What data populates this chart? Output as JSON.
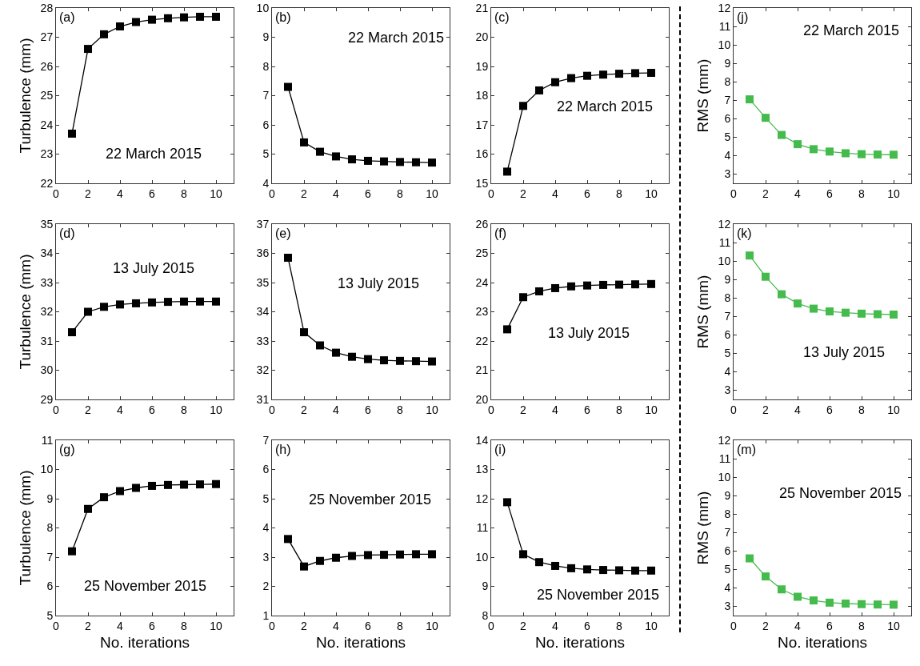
{
  "chart_data": [
    {
      "type": "line",
      "title": "(a)",
      "ylabel": "Turbulence (mm)",
      "annotations": [
        "22 March 2015"
      ],
      "x": [
        1,
        2,
        3,
        4,
        5,
        6,
        7,
        8,
        9,
        10
      ],
      "xlim": [
        0,
        11.1
      ],
      "xticks": [
        0,
        2,
        4,
        6,
        8,
        10
      ],
      "ylim": [
        22,
        28
      ],
      "yticks": [
        22,
        23,
        24,
        25,
        26,
        27,
        28
      ],
      "marker": "square",
      "grid": false,
      "series": [
        {
          "color": "#000000",
          "values": [
            23.7,
            26.6,
            27.1,
            27.37,
            27.52,
            27.6,
            27.65,
            27.68,
            27.7,
            27.7
          ]
        }
      ]
    },
    {
      "type": "line",
      "title": "(b)",
      "annotations": [
        "22 March 2015"
      ],
      "x": [
        1,
        2,
        3,
        4,
        5,
        6,
        7,
        8,
        9,
        10
      ],
      "xlim": [
        0,
        11.1
      ],
      "xticks": [
        0,
        2,
        4,
        6,
        8,
        10
      ],
      "ylim": [
        4,
        10
      ],
      "yticks": [
        4,
        5,
        6,
        7,
        8,
        9,
        10
      ],
      "marker": "square",
      "grid": false,
      "series": [
        {
          "color": "#000000",
          "values": [
            7.3,
            5.4,
            5.08,
            4.92,
            4.82,
            4.77,
            4.75,
            4.73,
            4.72,
            4.71
          ]
        }
      ]
    },
    {
      "type": "line",
      "title": "(c)",
      "annotations": [
        "22 March 2015"
      ],
      "x": [
        1,
        2,
        3,
        4,
        5,
        6,
        7,
        8,
        9,
        10
      ],
      "xlim": [
        0,
        11.1
      ],
      "xticks": [
        0,
        2,
        4,
        6,
        8,
        10
      ],
      "ylim": [
        15,
        21
      ],
      "yticks": [
        15,
        16,
        17,
        18,
        19,
        20,
        21
      ],
      "marker": "square",
      "grid": false,
      "series": [
        {
          "color": "#000000",
          "values": [
            15.4,
            17.65,
            18.18,
            18.46,
            18.6,
            18.68,
            18.72,
            18.75,
            18.77,
            18.78
          ]
        }
      ]
    },
    {
      "type": "line",
      "title": "(j)",
      "ylabel": "RMS (mm)",
      "annotations": [
        "22 March 2015"
      ],
      "x": [
        1,
        2,
        3,
        4,
        5,
        6,
        7,
        8,
        9,
        10
      ],
      "xlim": [
        0,
        11.1
      ],
      "xticks": [
        0,
        2,
        4,
        6,
        8,
        10
      ],
      "ylim": [
        2.5,
        12
      ],
      "yticks": [
        3,
        4,
        5,
        6,
        7,
        8,
        9,
        10,
        11,
        12
      ],
      "marker": "square",
      "grid": false,
      "series": [
        {
          "color": "#44bb4c",
          "values": [
            7.05,
            6.05,
            5.12,
            4.62,
            4.35,
            4.22,
            4.13,
            4.08,
            4.06,
            4.05
          ]
        }
      ]
    },
    {
      "type": "line",
      "title": "(d)",
      "ylabel": "Turbulence (mm)",
      "annotations": [
        "13 July 2015"
      ],
      "x": [
        1,
        2,
        3,
        4,
        5,
        6,
        7,
        8,
        9,
        10
      ],
      "xlim": [
        0,
        11.1
      ],
      "xticks": [
        0,
        2,
        4,
        6,
        8,
        10
      ],
      "ylim": [
        29,
        35
      ],
      "yticks": [
        29,
        30,
        31,
        32,
        33,
        34,
        35
      ],
      "marker": "square",
      "grid": false,
      "series": [
        {
          "color": "#000000",
          "values": [
            31.3,
            32.0,
            32.17,
            32.25,
            32.29,
            32.32,
            32.34,
            32.35,
            32.35,
            32.35
          ]
        }
      ]
    },
    {
      "type": "line",
      "title": "(e)",
      "annotations": [
        "13 July 2015"
      ],
      "x": [
        1,
        2,
        3,
        4,
        5,
        6,
        7,
        8,
        9,
        10
      ],
      "xlim": [
        0,
        11.1
      ],
      "xticks": [
        0,
        2,
        4,
        6,
        8,
        10
      ],
      "ylim": [
        31,
        37
      ],
      "yticks": [
        31,
        32,
        33,
        34,
        35,
        36,
        37
      ],
      "marker": "square",
      "grid": false,
      "series": [
        {
          "color": "#000000",
          "values": [
            35.85,
            33.3,
            32.85,
            32.6,
            32.46,
            32.38,
            32.34,
            32.32,
            32.31,
            32.3
          ]
        }
      ]
    },
    {
      "type": "line",
      "title": "(f)",
      "annotations": [
        "13 July 2015"
      ],
      "x": [
        1,
        2,
        3,
        4,
        5,
        6,
        7,
        8,
        9,
        10
      ],
      "xlim": [
        0,
        11.1
      ],
      "xticks": [
        0,
        2,
        4,
        6,
        8,
        10
      ],
      "ylim": [
        20,
        26
      ],
      "yticks": [
        20,
        21,
        22,
        23,
        24,
        25,
        26
      ],
      "marker": "square",
      "grid": false,
      "series": [
        {
          "color": "#000000",
          "values": [
            22.4,
            23.5,
            23.7,
            23.81,
            23.87,
            23.9,
            23.92,
            23.93,
            23.94,
            23.95
          ]
        }
      ]
    },
    {
      "type": "line",
      "title": "(k)",
      "ylabel": "RMS (mm)",
      "annotations": [
        "13 July 2015"
      ],
      "x": [
        1,
        2,
        3,
        4,
        5,
        6,
        7,
        8,
        9,
        10
      ],
      "xlim": [
        0,
        11.1
      ],
      "xticks": [
        0,
        2,
        4,
        6,
        8,
        10
      ],
      "ylim": [
        2.5,
        12
      ],
      "yticks": [
        3,
        4,
        5,
        6,
        7,
        8,
        9,
        10,
        11,
        12
      ],
      "marker": "square",
      "grid": false,
      "series": [
        {
          "color": "#44bb4c",
          "values": [
            10.3,
            9.15,
            8.2,
            7.7,
            7.42,
            7.27,
            7.2,
            7.15,
            7.12,
            7.1
          ]
        }
      ]
    },
    {
      "type": "line",
      "title": "(g)",
      "xlabel": "No. iterations",
      "ylabel": "Turbulence (mm)",
      "annotations": [
        "25 November 2015"
      ],
      "x": [
        1,
        2,
        3,
        4,
        5,
        6,
        7,
        8,
        9,
        10
      ],
      "xlim": [
        0,
        11.1
      ],
      "xticks": [
        0,
        2,
        4,
        6,
        8,
        10
      ],
      "ylim": [
        5,
        11
      ],
      "yticks": [
        5,
        6,
        7,
        8,
        9,
        10,
        11
      ],
      "marker": "square",
      "grid": false,
      "series": [
        {
          "color": "#000000",
          "values": [
            7.2,
            8.65,
            9.05,
            9.26,
            9.37,
            9.44,
            9.47,
            9.48,
            9.49,
            9.5
          ]
        }
      ]
    },
    {
      "type": "line",
      "title": "(h)",
      "xlabel": "No. iterations",
      "annotations": [
        "25 November 2015"
      ],
      "x": [
        1,
        2,
        3,
        4,
        5,
        6,
        7,
        8,
        9,
        10
      ],
      "xlim": [
        0,
        11.1
      ],
      "xticks": [
        0,
        2,
        4,
        6,
        8,
        10
      ],
      "ylim": [
        1,
        7
      ],
      "yticks": [
        1,
        2,
        3,
        4,
        5,
        6,
        7
      ],
      "marker": "square",
      "grid": false,
      "series": [
        {
          "color": "#000000",
          "values": [
            3.62,
            2.68,
            2.87,
            2.98,
            3.04,
            3.07,
            3.08,
            3.09,
            3.1,
            3.1
          ]
        }
      ]
    },
    {
      "type": "line",
      "title": "(i)",
      "xlabel": "No. iterations",
      "annotations": [
        "25 November 2015"
      ],
      "x": [
        1,
        2,
        3,
        4,
        5,
        6,
        7,
        8,
        9,
        10
      ],
      "xlim": [
        0,
        11.1
      ],
      "xticks": [
        0,
        2,
        4,
        6,
        8,
        10
      ],
      "ylim": [
        8,
        14
      ],
      "yticks": [
        8,
        9,
        10,
        11,
        12,
        13,
        14
      ],
      "marker": "square",
      "grid": false,
      "series": [
        {
          "color": "#000000",
          "values": [
            11.88,
            10.1,
            9.83,
            9.7,
            9.62,
            9.58,
            9.56,
            9.55,
            9.54,
            9.54
          ]
        }
      ]
    },
    {
      "type": "line",
      "title": "(m)",
      "xlabel": "No. iterations",
      "ylabel": "RMS (mm)",
      "annotations": [
        "25 November 2015"
      ],
      "x": [
        1,
        2,
        3,
        4,
        5,
        6,
        7,
        8,
        9,
        10
      ],
      "xlim": [
        0,
        11.1
      ],
      "xticks": [
        0,
        2,
        4,
        6,
        8,
        10
      ],
      "ylim": [
        2.5,
        12
      ],
      "yticks": [
        3,
        4,
        5,
        6,
        7,
        8,
        9,
        10,
        11,
        12
      ],
      "marker": "square",
      "grid": false,
      "series": [
        {
          "color": "#44bb4c",
          "values": [
            5.6,
            4.62,
            3.92,
            3.52,
            3.32,
            3.2,
            3.15,
            3.12,
            3.1,
            3.09
          ]
        }
      ]
    }
  ]
}
